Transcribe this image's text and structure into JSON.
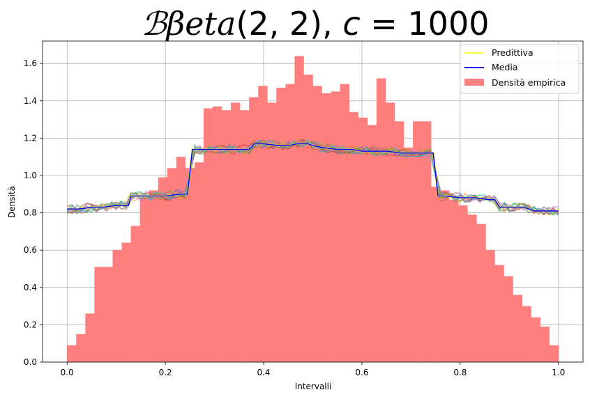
{
  "chart_data": {
    "type": "bar",
    "title": {
      "parts": [
        "ℬβeta",
        "(2, 2), ",
        "c",
        " = 1000"
      ]
    },
    "xlabel": "Intervalli",
    "ylabel": "Densità",
    "xlim": [
      -0.05,
      1.05
    ],
    "ylim": [
      0.0,
      1.72
    ],
    "xticks": [
      0.0,
      0.2,
      0.4,
      0.6,
      0.8,
      1.0
    ],
    "xtick_labels": [
      "0.0",
      "0.2",
      "0.4",
      "0.6",
      "0.8",
      "1.0"
    ],
    "yticks": [
      0.0,
      0.2,
      0.4,
      0.6,
      0.8,
      1.0,
      1.2,
      1.4,
      1.6
    ],
    "ytick_labels": [
      "0.0",
      "0.2",
      "0.4",
      "0.6",
      "0.8",
      "1.0",
      "1.2",
      "1.4",
      "1.6"
    ],
    "grid": true,
    "legend_position": "top-right",
    "histogram": {
      "name": "Densità empirica",
      "color": "#ff7f7f",
      "range": [
        0.0,
        1.0
      ],
      "values": [
        0.09,
        0.15,
        0.26,
        0.51,
        0.51,
        0.6,
        0.64,
        0.73,
        0.88,
        0.92,
        0.99,
        1.04,
        1.1,
        1.04,
        1.07,
        1.36,
        1.37,
        1.35,
        1.39,
        1.35,
        1.42,
        1.48,
        1.39,
        1.47,
        1.49,
        1.64,
        1.54,
        1.48,
        1.44,
        1.45,
        1.49,
        1.34,
        1.31,
        1.27,
        1.52,
        1.39,
        1.29,
        1.15,
        1.29,
        1.29,
        0.94,
        0.92,
        0.87,
        0.84,
        0.79,
        0.74,
        0.6,
        0.52,
        0.46,
        0.36,
        0.3,
        0.24,
        0.19,
        0.09
      ]
    },
    "mean_series": {
      "name": "Media",
      "color": "#0000ff",
      "x": [
        0.0,
        0.025,
        0.05,
        0.075,
        0.1,
        0.11,
        0.125,
        0.13,
        0.15,
        0.17,
        0.2,
        0.23,
        0.245,
        0.255,
        0.28,
        0.3,
        0.33,
        0.36,
        0.37,
        0.375,
        0.38,
        0.4,
        0.43,
        0.45,
        0.47,
        0.49,
        0.5,
        0.52,
        0.55,
        0.58,
        0.6,
        0.63,
        0.65,
        0.68,
        0.7,
        0.72,
        0.745,
        0.755,
        0.77,
        0.8,
        0.83,
        0.86,
        0.87,
        0.875,
        0.88,
        0.9,
        0.93,
        0.95,
        0.97,
        1.0
      ],
      "y": [
        0.82,
        0.82,
        0.83,
        0.83,
        0.84,
        0.84,
        0.84,
        0.89,
        0.89,
        0.89,
        0.89,
        0.9,
        0.9,
        1.14,
        1.14,
        1.14,
        1.14,
        1.14,
        1.14,
        1.15,
        1.17,
        1.17,
        1.16,
        1.16,
        1.17,
        1.17,
        1.16,
        1.15,
        1.14,
        1.14,
        1.13,
        1.13,
        1.13,
        1.12,
        1.12,
        1.12,
        1.12,
        0.89,
        0.89,
        0.88,
        0.88,
        0.87,
        0.87,
        0.85,
        0.83,
        0.83,
        0.83,
        0.81,
        0.81,
        0.81
      ]
    },
    "predictive_legend": {
      "name": "Predittiva",
      "color": "#ffff33"
    },
    "sample_path_colors": [
      "#1f77b4",
      "#ff7f0e",
      "#2ca02c",
      "#d62728",
      "#9467bd",
      "#8c564b",
      "#e377c2",
      "#7f7f7f",
      "#bcbd22",
      "#17becf"
    ]
  }
}
